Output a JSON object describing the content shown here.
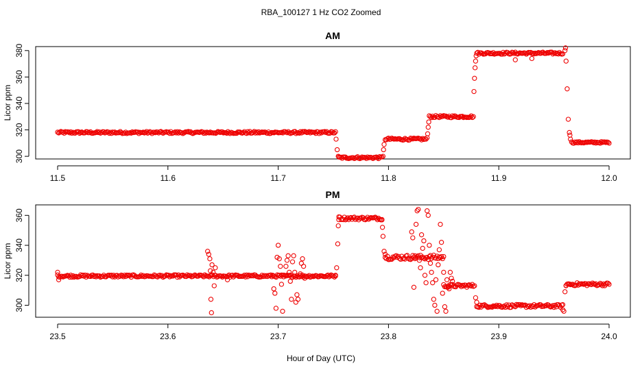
{
  "figure": {
    "title": "RBA_100127  1 Hz CO2 Zoomed",
    "xlabel": "Hour of Day (UTC)"
  },
  "colors": {
    "points": "#ee0000",
    "axes": "#000000",
    "background": "#ffffff"
  },
  "chart_data": [
    {
      "type": "scatter",
      "title": "AM",
      "xlabel": "Hour of Day (UTC)",
      "ylabel": "Licor ppm",
      "xlim": [
        11.5,
        12.0
      ],
      "ylim": [
        298,
        383
      ],
      "xticks": [
        "11.5",
        "11.6",
        "11.7",
        "11.8",
        "11.9",
        "12.0"
      ],
      "yticks": [
        "300",
        "320",
        "340",
        "360",
        "380"
      ],
      "segments": [
        {
          "x0": 11.5,
          "x1": 11.752,
          "y": 318.0,
          "noise": 0.8
        },
        {
          "x0": 11.755,
          "x1": 11.794,
          "y": 299.0,
          "noise": 0.8
        },
        {
          "x0": 11.797,
          "x1": 11.834,
          "y": 313.0,
          "noise": 0.8
        },
        {
          "x0": 11.837,
          "x1": 11.876,
          "y": 330.0,
          "noise": 0.8
        },
        {
          "x0": 11.88,
          "x1": 11.958,
          "y": 378.0,
          "noise": 0.8
        },
        {
          "x0": 11.966,
          "x1": 12.0,
          "y": 310.5,
          "noise": 0.6
        }
      ],
      "points": [
        [
          11.7525,
          313
        ],
        [
          11.7535,
          305
        ],
        [
          11.7545,
          300
        ],
        [
          11.795,
          300
        ],
        [
          11.7955,
          305
        ],
        [
          11.796,
          309
        ],
        [
          11.835,
          314
        ],
        [
          11.8355,
          317
        ],
        [
          11.836,
          322
        ],
        [
          11.8365,
          326
        ],
        [
          11.877,
          330
        ],
        [
          11.8775,
          349
        ],
        [
          11.878,
          359
        ],
        [
          11.8785,
          367
        ],
        [
          11.879,
          372
        ],
        [
          11.8795,
          376
        ],
        [
          11.96,
          380
        ],
        [
          11.9605,
          382
        ],
        [
          11.961,
          372
        ],
        [
          11.962,
          351
        ],
        [
          11.963,
          328
        ],
        [
          11.964,
          318
        ],
        [
          11.9645,
          316
        ],
        [
          11.965,
          313
        ],
        [
          11.915,
          373
        ],
        [
          11.93,
          374
        ]
      ]
    },
    {
      "type": "scatter",
      "title": "PM",
      "xlabel": "Hour of Day (UTC)",
      "ylabel": "Licor ppm",
      "xlim": [
        23.5,
        24.0
      ],
      "ylim": [
        292,
        367
      ],
      "xticks": [
        "23.5",
        "23.6",
        "23.7",
        "23.8",
        "23.9",
        "24.0"
      ],
      "yticks": [
        "300",
        "320",
        "340",
        "360"
      ],
      "segments": [
        {
          "x0": 23.5,
          "x1": 23.752,
          "y": 319.5,
          "noise": 0.8
        },
        {
          "x0": 23.755,
          "x1": 23.794,
          "y": 358.0,
          "noise": 1.0
        },
        {
          "x0": 23.797,
          "x1": 23.85,
          "y": 332.0,
          "noise": 1.5
        },
        {
          "x0": 23.85,
          "x1": 23.877,
          "y": 313.0,
          "noise": 1.0
        },
        {
          "x0": 23.88,
          "x1": 23.958,
          "y": 299.5,
          "noise": 1.0
        },
        {
          "x0": 23.961,
          "x1": 24.0,
          "y": 314.0,
          "noise": 1.0
        }
      ],
      "points": [
        [
          23.5,
          322
        ],
        [
          23.501,
          317
        ],
        [
          23.636,
          336
        ],
        [
          23.637,
          334
        ],
        [
          23.638,
          331
        ],
        [
          23.6385,
          323
        ],
        [
          23.639,
          304
        ],
        [
          23.6395,
          295
        ],
        [
          23.64,
          327
        ],
        [
          23.641,
          322
        ],
        [
          23.642,
          313
        ],
        [
          23.643,
          325
        ],
        [
          23.654,
          317
        ],
        [
          23.695,
          320
        ],
        [
          23.696,
          311
        ],
        [
          23.697,
          308
        ],
        [
          23.698,
          298
        ],
        [
          23.699,
          332
        ],
        [
          23.7,
          340
        ],
        [
          23.701,
          331
        ],
        [
          23.702,
          326
        ],
        [
          23.703,
          314
        ],
        [
          23.704,
          296
        ],
        [
          23.705,
          319
        ],
        [
          23.707,
          326
        ],
        [
          23.708,
          330
        ],
        [
          23.709,
          333
        ],
        [
          23.71,
          322
        ],
        [
          23.711,
          316
        ],
        [
          23.712,
          304
        ],
        [
          23.713,
          329
        ],
        [
          23.714,
          333
        ],
        [
          23.715,
          322
        ],
        [
          23.716,
          302
        ],
        [
          23.717,
          307
        ],
        [
          23.718,
          304
        ],
        [
          23.72,
          321
        ],
        [
          23.721,
          328
        ],
        [
          23.722,
          331
        ],
        [
          23.723,
          326
        ],
        [
          23.724,
          318
        ],
        [
          23.752,
          320
        ],
        [
          23.753,
          325
        ],
        [
          23.754,
          341
        ],
        [
          23.7545,
          353
        ],
        [
          23.755,
          359
        ],
        [
          23.794,
          357
        ],
        [
          23.7945,
          352
        ],
        [
          23.795,
          346
        ],
        [
          23.796,
          336
        ],
        [
          23.797,
          334
        ],
        [
          23.821,
          349
        ],
        [
          23.822,
          345
        ],
        [
          23.823,
          312
        ],
        [
          23.824,
          333
        ],
        [
          23.825,
          354
        ],
        [
          23.826,
          363
        ],
        [
          23.827,
          364
        ],
        [
          23.828,
          330
        ],
        [
          23.829,
          325
        ],
        [
          23.83,
          347
        ],
        [
          23.831,
          338
        ],
        [
          23.832,
          343
        ],
        [
          23.833,
          320
        ],
        [
          23.834,
          315
        ],
        [
          23.835,
          363
        ],
        [
          23.836,
          360
        ],
        [
          23.837,
          340
        ],
        [
          23.838,
          328
        ],
        [
          23.839,
          322
        ],
        [
          23.84,
          315
        ],
        [
          23.841,
          304
        ],
        [
          23.842,
          300
        ],
        [
          23.843,
          317
        ],
        [
          23.844,
          296
        ],
        [
          23.845,
          327
        ],
        [
          23.846,
          337
        ],
        [
          23.847,
          354
        ],
        [
          23.848,
          342
        ],
        [
          23.849,
          308
        ],
        [
          23.85,
          322
        ],
        [
          23.851,
          299
        ],
        [
          23.852,
          296
        ],
        [
          23.853,
          317
        ],
        [
          23.854,
          312
        ],
        [
          23.855,
          311
        ],
        [
          23.856,
          322
        ],
        [
          23.857,
          318
        ],
        [
          23.858,
          316
        ],
        [
          23.878,
          313
        ],
        [
          23.879,
          305
        ],
        [
          23.88,
          302
        ],
        [
          23.958,
          297
        ],
        [
          23.959,
          296
        ],
        [
          23.96,
          309
        ],
        [
          23.961,
          313
        ]
      ]
    }
  ]
}
